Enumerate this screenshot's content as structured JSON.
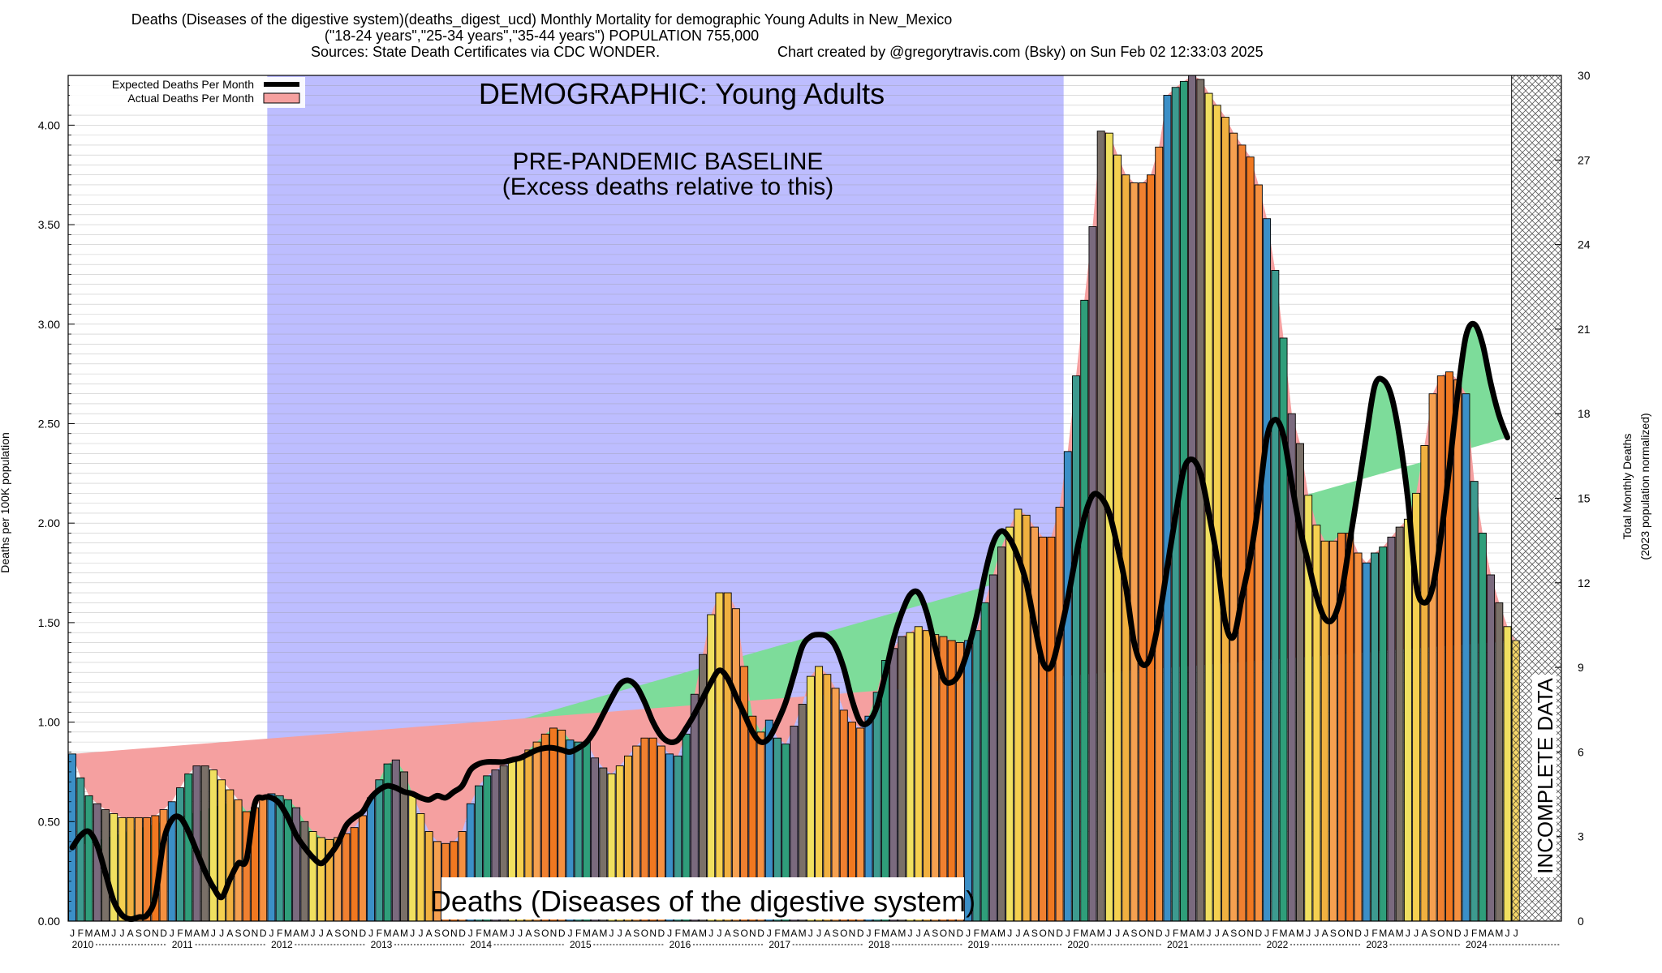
{
  "header": {
    "title_line1": "Deaths (Diseases of the digestive system)(deaths_digest_ucd) Monthly Mortality for demographic Young Adults in New_Mexico",
    "title_line2": "(\"18-24 years\",\"25-34 years\",\"35-44 years\") POPULATION 755,000",
    "sources": "Sources: State Death Certificates via CDC WONDER.",
    "credit": "Chart created by @gregorytravis.com (Bsky) on Sun Feb 02 12:33:03 2025"
  },
  "labels": {
    "demographic": "DEMOGRAPHIC: Young Adults",
    "baseline_line1": "PRE-PANDEMIC BASELINE",
    "baseline_line2": "(Excess deaths relative to this)",
    "cause": "Deaths (Diseases of the digestive system)",
    "incomplete": "INCOMPLETE DATA"
  },
  "colors": {
    "baseline_shade": "#bdbdff",
    "excess_fill": "#7ddc9a",
    "excess_fill_late": "#90ff90",
    "deficit_fill": "#f5a0a0",
    "expected_line": "#000000",
    "bar_palette": [
      "#3b8fc7",
      "#3d9a8f",
      "#2f9e7a",
      "#7a6a7e",
      "#7a7068",
      "#f0e060",
      "#f5d050",
      "#f0b040",
      "#f5a050",
      "#f08030",
      "#f07820",
      "#f59040"
    ]
  },
  "chart_data": {
    "type": "bar",
    "title": "Deaths (Diseases of the digestive system)(deaths_digest_ucd) Monthly Mortality for demographic Young Adults in New_Mexico",
    "ylabel": "Deaths per 100K population",
    "y2label_line1": "Total Monthly Deaths",
    "y2label_line2": "(2023 population normalized)",
    "ylim": [
      0,
      4.25
    ],
    "y2lim": [
      0,
      30
    ],
    "yticks": [
      "0.00",
      "0.50",
      "1.00",
      "1.50",
      "2.00",
      "2.50",
      "3.00",
      "3.50",
      "4.00"
    ],
    "y2ticks": [
      "0",
      "3",
      "6",
      "9",
      "12",
      "15",
      "18",
      "21",
      "24",
      "27",
      "30"
    ],
    "month_letters": [
      "J",
      "F",
      "M",
      "A",
      "M",
      "J",
      "J",
      "A",
      "S",
      "O",
      "N",
      "D"
    ],
    "years": [
      "2010",
      "2011",
      "2012",
      "2013",
      "2014",
      "2015",
      "2016",
      "2017",
      "2018",
      "2019",
      "2020",
      "2021",
      "2022",
      "2023",
      "2024"
    ],
    "start": "2010-01",
    "baseline_period": [
      "2012-01",
      "2019-12"
    ],
    "incomplete_period": [
      "2024-07",
      "2024-12"
    ],
    "legend": [
      "Expected Deaths Per Month",
      "Actual Deaths Per Month"
    ],
    "legend_position": "top-left",
    "grid": "horizontal",
    "series": [
      {
        "name": "Actual Deaths Per Month",
        "values": [
          0.84,
          0.72,
          0.63,
          0.59,
          0.56,
          0.54,
          0.52,
          0.52,
          0.52,
          0.52,
          0.53,
          0.56,
          0.6,
          0.67,
          0.74,
          0.78,
          0.78,
          0.76,
          0.71,
          0.66,
          0.61,
          0.55,
          0.57,
          0.62,
          0.64,
          0.63,
          0.61,
          0.57,
          0.5,
          0.45,
          0.42,
          0.41,
          0.42,
          0.44,
          0.47,
          0.53,
          0.62,
          0.71,
          0.79,
          0.81,
          0.75,
          0.64,
          0.54,
          0.45,
          0.4,
          0.39,
          0.4,
          0.45,
          0.59,
          0.68,
          0.73,
          0.76,
          0.78,
          0.8,
          0.82,
          0.86,
          0.9,
          0.94,
          0.97,
          0.96,
          0.91,
          0.9,
          0.9,
          0.82,
          0.77,
          0.74,
          0.78,
          0.83,
          0.88,
          0.92,
          0.92,
          0.88,
          0.84,
          0.83,
          0.94,
          1.14,
          1.34,
          1.54,
          1.65,
          1.65,
          1.57,
          1.28,
          1.03,
          0.95,
          1.01,
          0.92,
          0.89,
          0.98,
          1.09,
          1.23,
          1.28,
          1.24,
          1.17,
          1.06,
          1.0,
          0.97,
          1.03,
          1.15,
          1.31,
          1.37,
          1.43,
          1.45,
          1.48,
          1.46,
          1.44,
          1.43,
          1.41,
          1.4,
          1.41,
          1.46,
          1.6,
          1.74,
          1.88,
          1.98,
          2.07,
          2.04,
          1.98,
          1.93,
          1.93,
          2.08,
          2.36,
          2.74,
          3.12,
          3.49,
          3.97,
          3.96,
          3.85,
          3.75,
          3.71,
          3.71,
          3.75,
          3.89,
          4.15,
          4.19,
          4.22,
          4.25,
          4.23,
          4.16,
          4.1,
          4.04,
          3.96,
          3.9,
          3.84,
          3.7,
          3.53,
          3.27,
          2.93,
          2.55,
          2.4,
          2.14,
          1.99,
          1.91,
          1.91,
          1.95,
          1.95,
          1.85,
          1.8,
          1.85,
          1.88,
          1.93,
          1.98,
          2.02,
          2.15,
          2.39,
          2.65,
          2.74,
          2.76,
          2.72,
          2.65,
          2.21,
          1.95,
          1.74,
          1.6,
          1.48,
          1.41
        ]
      },
      {
        "name": "Expected Deaths Per Month",
        "values": [
          0.37,
          0.43,
          0.45,
          0.38,
          0.24,
          0.1,
          0.03,
          0.01,
          0.02,
          0.03,
          0.12,
          0.4,
          0.51,
          0.52,
          0.45,
          0.35,
          0.25,
          0.17,
          0.12,
          0.21,
          0.29,
          0.31,
          0.59,
          0.62,
          0.62,
          0.59,
          0.52,
          0.43,
          0.37,
          0.32,
          0.29,
          0.33,
          0.39,
          0.48,
          0.52,
          0.55,
          0.62,
          0.66,
          0.68,
          0.67,
          0.65,
          0.64,
          0.62,
          0.61,
          0.63,
          0.62,
          0.65,
          0.68,
          0.76,
          0.79,
          0.8,
          0.8,
          0.8,
          0.81,
          0.82,
          0.84,
          0.86,
          0.87,
          0.87,
          0.86,
          0.85,
          0.87,
          0.9,
          0.96,
          1.04,
          1.12,
          1.19,
          1.21,
          1.18,
          1.1,
          1.0,
          0.93,
          0.9,
          0.91,
          0.97,
          1.04,
          1.12,
          1.2,
          1.26,
          1.22,
          1.13,
          1.04,
          0.95,
          0.9,
          0.92,
          1.0,
          1.1,
          1.24,
          1.38,
          1.43,
          1.44,
          1.43,
          1.38,
          1.27,
          1.11,
          1.0,
          1.0,
          1.08,
          1.24,
          1.42,
          1.55,
          1.64,
          1.65,
          1.55,
          1.38,
          1.22,
          1.2,
          1.25,
          1.37,
          1.53,
          1.74,
          1.9,
          1.96,
          1.92,
          1.83,
          1.7,
          1.49,
          1.3,
          1.28,
          1.43,
          1.62,
          1.84,
          2.03,
          2.14,
          2.13,
          2.05,
          1.88,
          1.68,
          1.4,
          1.29,
          1.33,
          1.52,
          1.78,
          2.04,
          2.27,
          2.32,
          2.25,
          2.05,
          1.82,
          1.5,
          1.43,
          1.63,
          1.83,
          2.1,
          2.43,
          2.52,
          2.44,
          2.2,
          1.97,
          1.8,
          1.63,
          1.52,
          1.52,
          1.65,
          1.91,
          2.17,
          2.44,
          2.69,
          2.72,
          2.64,
          2.43,
          2.12,
          1.69,
          1.6,
          1.68,
          1.94,
          2.28,
          2.65,
          2.94,
          3.0,
          2.9,
          2.7,
          2.54,
          2.43
        ]
      }
    ]
  }
}
